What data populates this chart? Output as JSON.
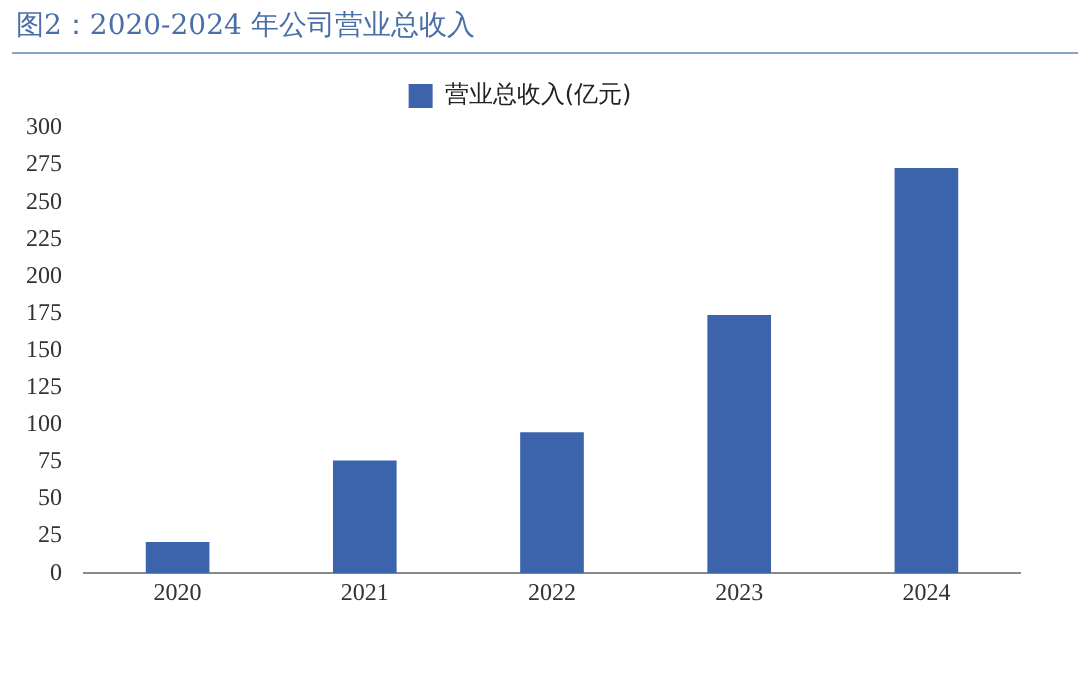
{
  "chart_data": {
    "type": "bar",
    "title": "图2：2020-2024 年公司营业总收入",
    "categories": [
      "2020",
      "2021",
      "2022",
      "2023",
      "2024"
    ],
    "series": [
      {
        "name": "营业总收入(亿元)",
        "color": "#3b64ad",
        "values": [
          21,
          76,
          95,
          174,
          273
        ]
      }
    ],
    "ylim": [
      0,
      300
    ],
    "yticks": [
      0,
      25,
      50,
      75,
      100,
      125,
      150,
      175,
      200,
      225,
      250,
      275,
      300
    ],
    "grid": false,
    "legend": "top"
  }
}
